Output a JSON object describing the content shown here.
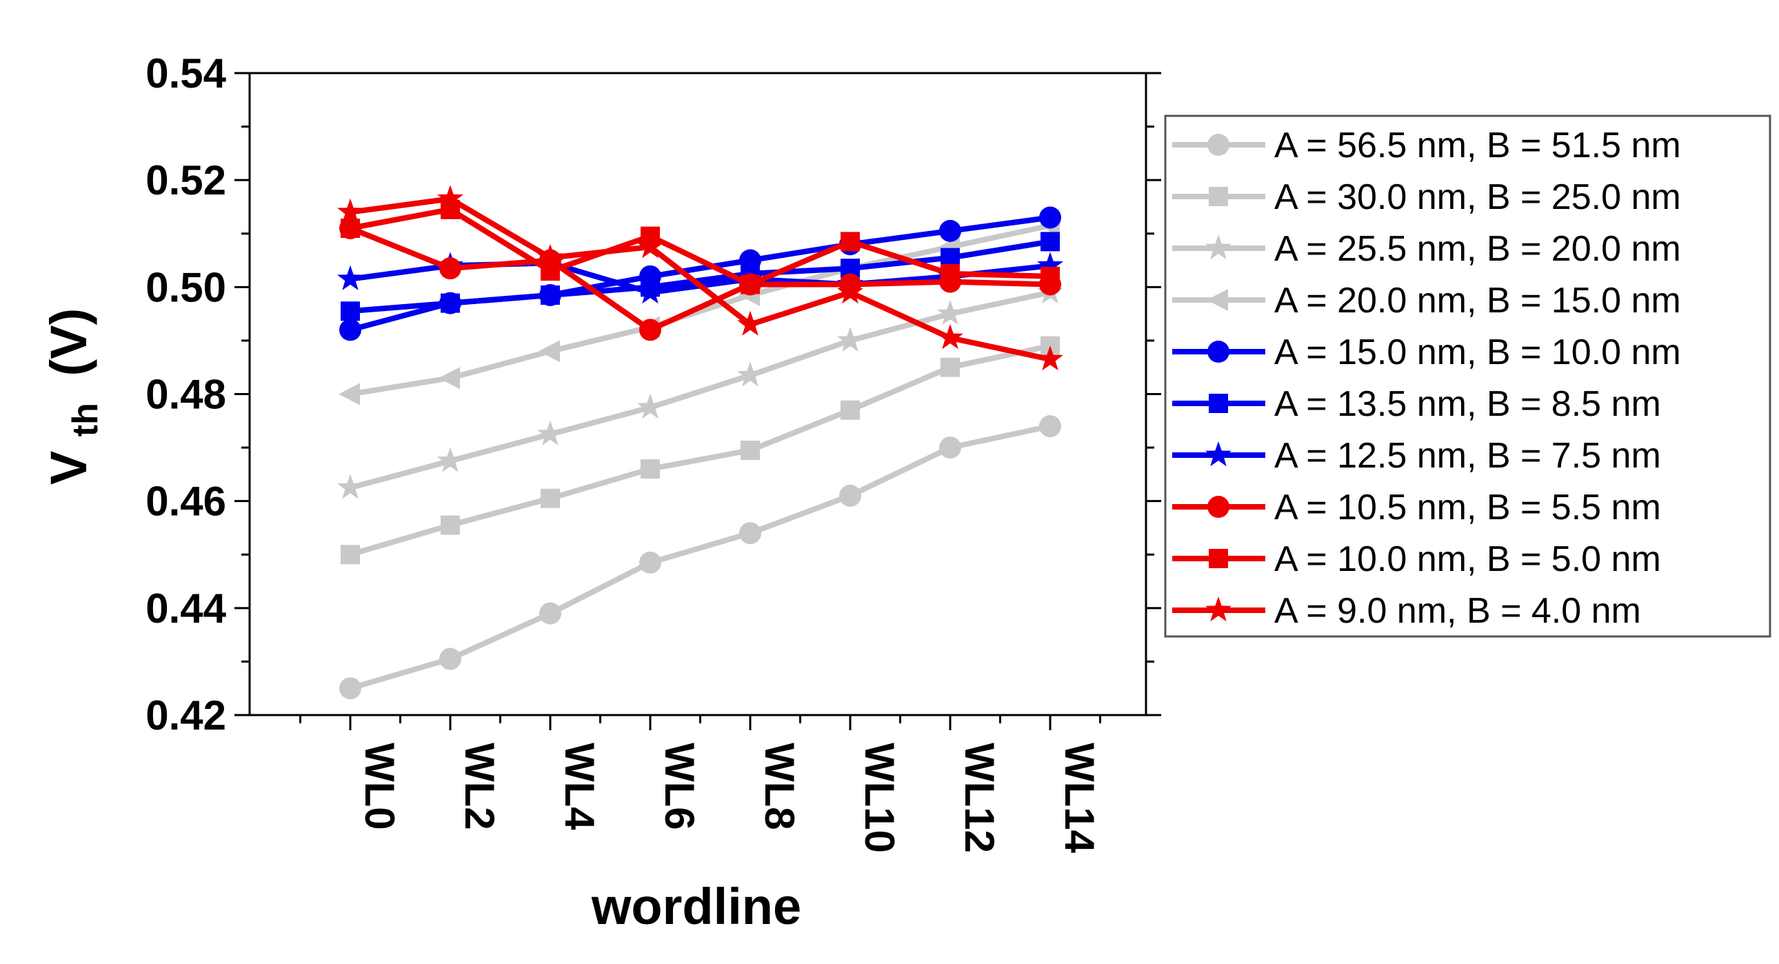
{
  "chart_data": {
    "type": "line",
    "title": "",
    "xlabel": "wordline",
    "ylabel": "V",
    "ylabel_subscript": "th",
    "ylabel_unit": "(V)",
    "categories": [
      "WL0",
      "WL2",
      "WL4",
      "WL6",
      "WL8",
      "WL10",
      "WL12",
      "WL14"
    ],
    "ylim": [
      0.42,
      0.54
    ],
    "yticks": [
      "0.42",
      "0.44",
      "0.46",
      "0.48",
      "0.50",
      "0.52",
      "0.54"
    ],
    "grid": false,
    "legend_position": "right",
    "series": [
      {
        "name": "A = 56.5 nm, B = 51.5 nm",
        "color": "#c8c8c8",
        "marker": "circle",
        "values": [
          0.425,
          0.4305,
          0.439,
          0.4485,
          0.454,
          0.461,
          0.47,
          0.474
        ]
      },
      {
        "name": "A = 30.0 nm, B = 25.0 nm",
        "color": "#c8c8c8",
        "marker": "square",
        "values": [
          0.45,
          0.4555,
          0.4605,
          0.466,
          0.4695,
          0.477,
          0.485,
          0.489
        ]
      },
      {
        "name": "A = 25.5 nm, B = 20.0 nm",
        "color": "#c8c8c8",
        "marker": "star",
        "values": [
          0.4625,
          0.4675,
          0.4725,
          0.4775,
          0.4835,
          0.49,
          0.495,
          0.499
        ]
      },
      {
        "name": "A = 20.0 nm, B = 15.0 nm",
        "color": "#c8c8c8",
        "marker": "triangle-left",
        "values": [
          0.48,
          0.483,
          0.488,
          0.4925,
          0.4985,
          0.5035,
          0.5075,
          0.5115
        ]
      },
      {
        "name": "A = 15.0 nm, B = 10.0 nm",
        "color": "#0000ee",
        "marker": "circle",
        "values": [
          0.492,
          0.497,
          0.4985,
          0.502,
          0.505,
          0.508,
          0.5105,
          0.513
        ]
      },
      {
        "name": "A = 13.5 nm, B = 8.5 nm",
        "color": "#0000ee",
        "marker": "square",
        "values": [
          0.4955,
          0.497,
          0.4985,
          0.5,
          0.5025,
          0.5035,
          0.5055,
          0.5085
        ]
      },
      {
        "name": "A = 12.5 nm, B = 7.5 nm",
        "color": "#0000ee",
        "marker": "star",
        "values": [
          0.5015,
          0.504,
          0.5045,
          0.499,
          0.5015,
          0.5005,
          0.502,
          0.504
        ]
      },
      {
        "name": "A = 10.5 nm, B = 5.5 nm",
        "color": "#ee0000",
        "marker": "circle",
        "values": [
          0.511,
          0.5035,
          0.505,
          0.492,
          0.5005,
          0.5005,
          0.501,
          0.5005
        ]
      },
      {
        "name": "A = 10.0 nm, B = 5.0 nm",
        "color": "#ee0000",
        "marker": "square",
        "values": [
          0.511,
          0.5145,
          0.503,
          0.5095,
          0.5005,
          0.5085,
          0.5025,
          0.502
        ]
      },
      {
        "name": "A = 9.0 nm, B = 4.0 nm",
        "color": "#ee0000",
        "marker": "star",
        "values": [
          0.514,
          0.5165,
          0.5055,
          0.5075,
          0.493,
          0.499,
          0.4905,
          0.4865
        ]
      }
    ]
  }
}
